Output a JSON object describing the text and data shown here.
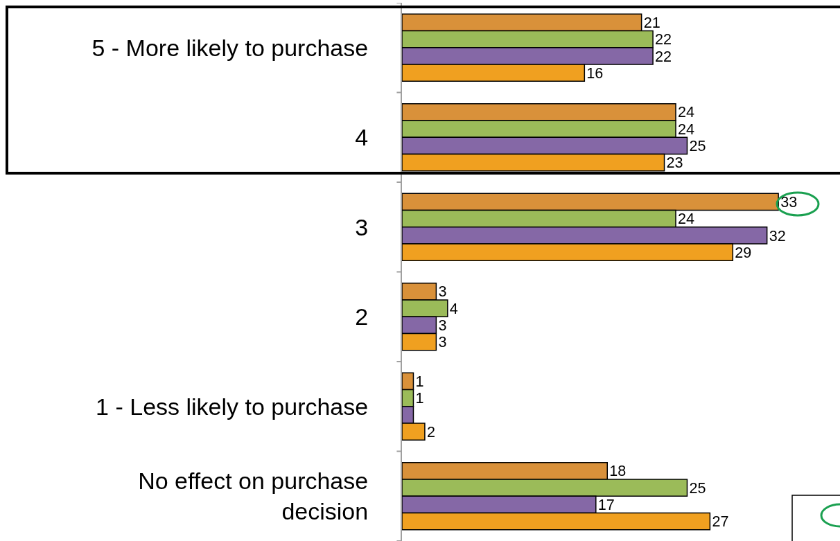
{
  "chart_data": {
    "type": "bar",
    "orientation": "horizontal",
    "categories": [
      "5 - More likely to purchase",
      "4",
      "3",
      "2",
      "1 - Less likely to purchase",
      "No effect on purchase decision"
    ],
    "series": [
      {
        "color": "#d9913a",
        "values": [
          21,
          24,
          33,
          3,
          1,
          18
        ]
      },
      {
        "color": "#9bbb59",
        "values": [
          22,
          24,
          24,
          4,
          1,
          25
        ]
      },
      {
        "color": "#8568a6",
        "values": [
          22,
          25,
          32,
          3,
          1,
          17
        ],
        "value_labels": [
          "22",
          "25",
          "32",
          "3",
          null,
          "17"
        ]
      },
      {
        "color": "#f0a020",
        "values": [
          16,
          23,
          29,
          3,
          2,
          27
        ]
      }
    ],
    "xlim": [
      0,
      38.4
    ],
    "tick_labels": "y",
    "data_labels": true
  }
}
